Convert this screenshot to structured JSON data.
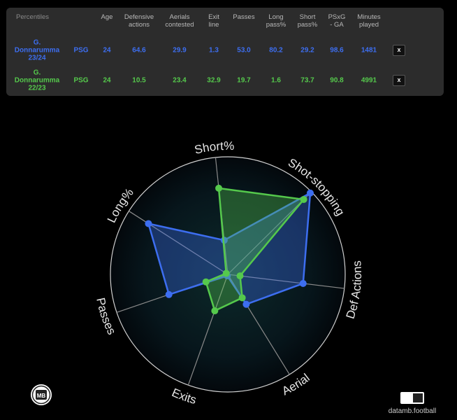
{
  "table": {
    "headers": {
      "percentiles": "Percentiles",
      "age": "Age",
      "defensive_actions": "Defensive\nactions",
      "aerials_contested": "Aerials\ncontested",
      "exit_line": "Exit\nline",
      "passes": "Passes",
      "long_pass": "Long\npass%",
      "short_pass": "Short\npass%",
      "psxg_ga": "PSxG\n- GA",
      "minutes_played": "Minutes\nplayed"
    },
    "rows": [
      {
        "player": "G.\nDonnarumma\n23/24",
        "team": "PSG",
        "age": "24",
        "defensive_actions": "64.6",
        "aerials_contested": "29.9",
        "exit_line": "1.3",
        "passes": "53.0",
        "long_pass": "80.2",
        "short_pass": "29.2",
        "psxg_ga": "98.6",
        "minutes_played": "1481",
        "remove": "x",
        "color": "#3d6ef0"
      },
      {
        "player": "G.\nDonnarumma\n22/23",
        "team": "PSG",
        "age": "24",
        "defensive_actions": "10.5",
        "aerials_contested": "23.4",
        "exit_line": "32.9",
        "passes": "19.7",
        "long_pass": "1.6",
        "short_pass": "73.7",
        "psxg_ga": "90.8",
        "minutes_played": "4991",
        "remove": "x",
        "color": "#55c94c"
      }
    ]
  },
  "chart_data": {
    "type": "radar",
    "axes": [
      "Short%",
      "Shot-stopping",
      "Def Actions",
      "Aerial",
      "Exits",
      "Passes",
      "Long%"
    ],
    "range": [
      0,
      100
    ],
    "series": [
      {
        "name": "G. Donnarumma 23/24",
        "color": "#3d6ef0",
        "values": [
          29.2,
          98.6,
          64.6,
          29.9,
          1.3,
          53.0,
          80.2
        ]
      },
      {
        "name": "G. Donnarumma 22/23",
        "color": "#55c94c",
        "values": [
          73.7,
          90.8,
          10.5,
          23.4,
          32.9,
          19.7,
          1.6
        ]
      }
    ]
  },
  "footer": {
    "logo_text": "MB",
    "brand": "datamb.football"
  }
}
